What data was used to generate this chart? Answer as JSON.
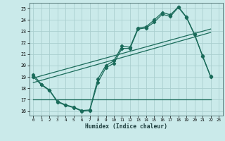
{
  "xlabel": "Humidex (Indice chaleur)",
  "bg_color": "#caeaea",
  "grid_color": "#aacfcf",
  "line_color": "#1a6b5a",
  "xlim_min": -0.5,
  "xlim_max": 23.5,
  "ylim_min": 15.6,
  "ylim_max": 25.5,
  "xticks": [
    0,
    1,
    2,
    3,
    4,
    5,
    6,
    7,
    8,
    9,
    10,
    11,
    12,
    13,
    14,
    15,
    16,
    17,
    18,
    19,
    20,
    21,
    22,
    23
  ],
  "yticks": [
    16,
    17,
    18,
    19,
    20,
    21,
    22,
    23,
    24,
    25
  ],
  "curve1_x": [
    0,
    1,
    2,
    3,
    4,
    5,
    6,
    7,
    8,
    9,
    10,
    11,
    12,
    13,
    14,
    15,
    16,
    17,
    18,
    19,
    20,
    21,
    22
  ],
  "curve1_y": [
    19.0,
    18.3,
    17.8,
    16.8,
    16.5,
    16.3,
    16.0,
    16.05,
    18.5,
    19.8,
    20.2,
    21.5,
    21.5,
    23.2,
    23.3,
    23.8,
    24.5,
    24.3,
    25.1,
    24.2,
    22.7,
    20.8,
    19.0
  ],
  "curve2_x": [
    0,
    1,
    2,
    3,
    4,
    5,
    6,
    7,
    8,
    9,
    10,
    11,
    12,
    13,
    14,
    15,
    16,
    17,
    18,
    19,
    20,
    21,
    22
  ],
  "curve2_y": [
    19.2,
    18.35,
    17.85,
    16.85,
    16.55,
    16.35,
    16.05,
    16.1,
    18.8,
    20.0,
    20.4,
    21.7,
    21.6,
    23.3,
    23.4,
    24.0,
    24.65,
    24.45,
    25.15,
    24.25,
    22.75,
    20.85,
    19.05
  ],
  "hline_x": [
    0,
    22
  ],
  "hline_y": 17.0,
  "trend1_x": [
    0,
    22
  ],
  "trend1_y": [
    18.5,
    22.9
  ],
  "trend2_x": [
    0,
    22
  ],
  "trend2_y": [
    18.9,
    23.2
  ]
}
